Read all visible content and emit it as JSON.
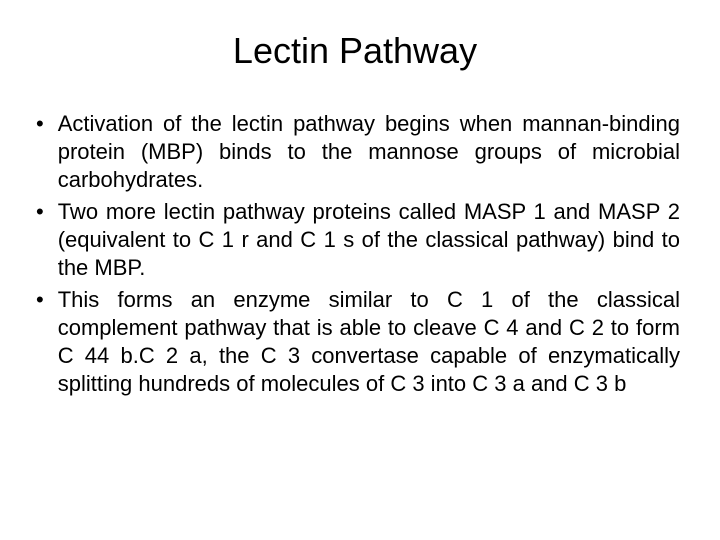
{
  "slide": {
    "title": "Lectin Pathway",
    "title_fontsize": 36,
    "body_fontsize": 22,
    "line_height": 28,
    "background_color": "#ffffff",
    "text_color": "#000000",
    "bullet_marker": "•",
    "bullets": [
      "Activation of the lectin pathway begins when mannan-binding protein (MBP) binds to the mannose groups of microbial carbohydrates.",
      "Two more lectin pathway proteins called MASP 1 and MASP 2 (equivalent to C 1 r and C 1 s of the classical pathway) bind to the MBP.",
      "This forms an enzyme similar to C 1 of the classical complement pathway that is able to cleave C 4 and C 2 to form C 44 b.C 2 a, the C 3 convertase capable of enzymatically splitting hundreds of molecules of C 3 into C 3 a and C 3 b"
    ]
  }
}
